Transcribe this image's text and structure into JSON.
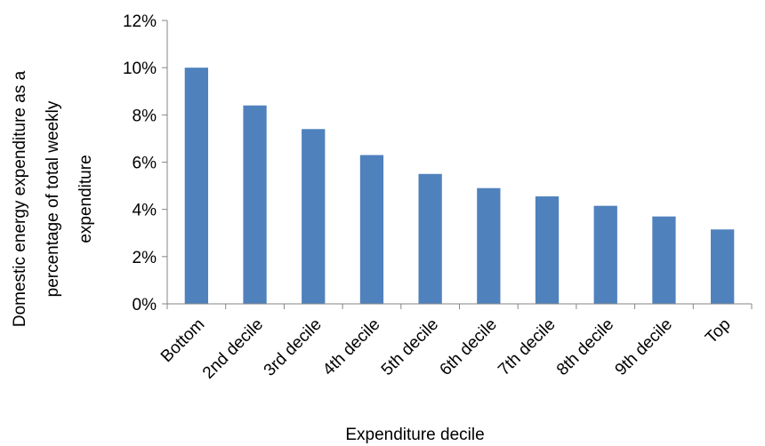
{
  "chart_data": {
    "type": "bar",
    "title": "",
    "xlabel": "Expenditure decile",
    "ylabel_lines": [
      "Domestic energy expenditure  as a",
      "percentage of total weekly",
      "expenditure"
    ],
    "categories": [
      "Bottom",
      "2nd decile",
      "3rd decile",
      "4th decile",
      "5th decile",
      "6th decile",
      "7th decile",
      "8th decile",
      "9th decile",
      "Top"
    ],
    "values": [
      10.0,
      8.4,
      7.4,
      6.3,
      5.5,
      4.9,
      4.55,
      4.15,
      3.7,
      3.15
    ],
    "y_unit": "%",
    "ylim": [
      0,
      12
    ],
    "yticks": [
      0,
      2,
      4,
      6,
      8,
      10,
      12
    ],
    "ytick_labels": [
      "0%",
      "2%",
      "4%",
      "6%",
      "8%",
      "10%",
      "12%"
    ],
    "grid": false,
    "legend": "none",
    "bar_color": "#4F81BD",
    "axis_color": "#868686"
  }
}
